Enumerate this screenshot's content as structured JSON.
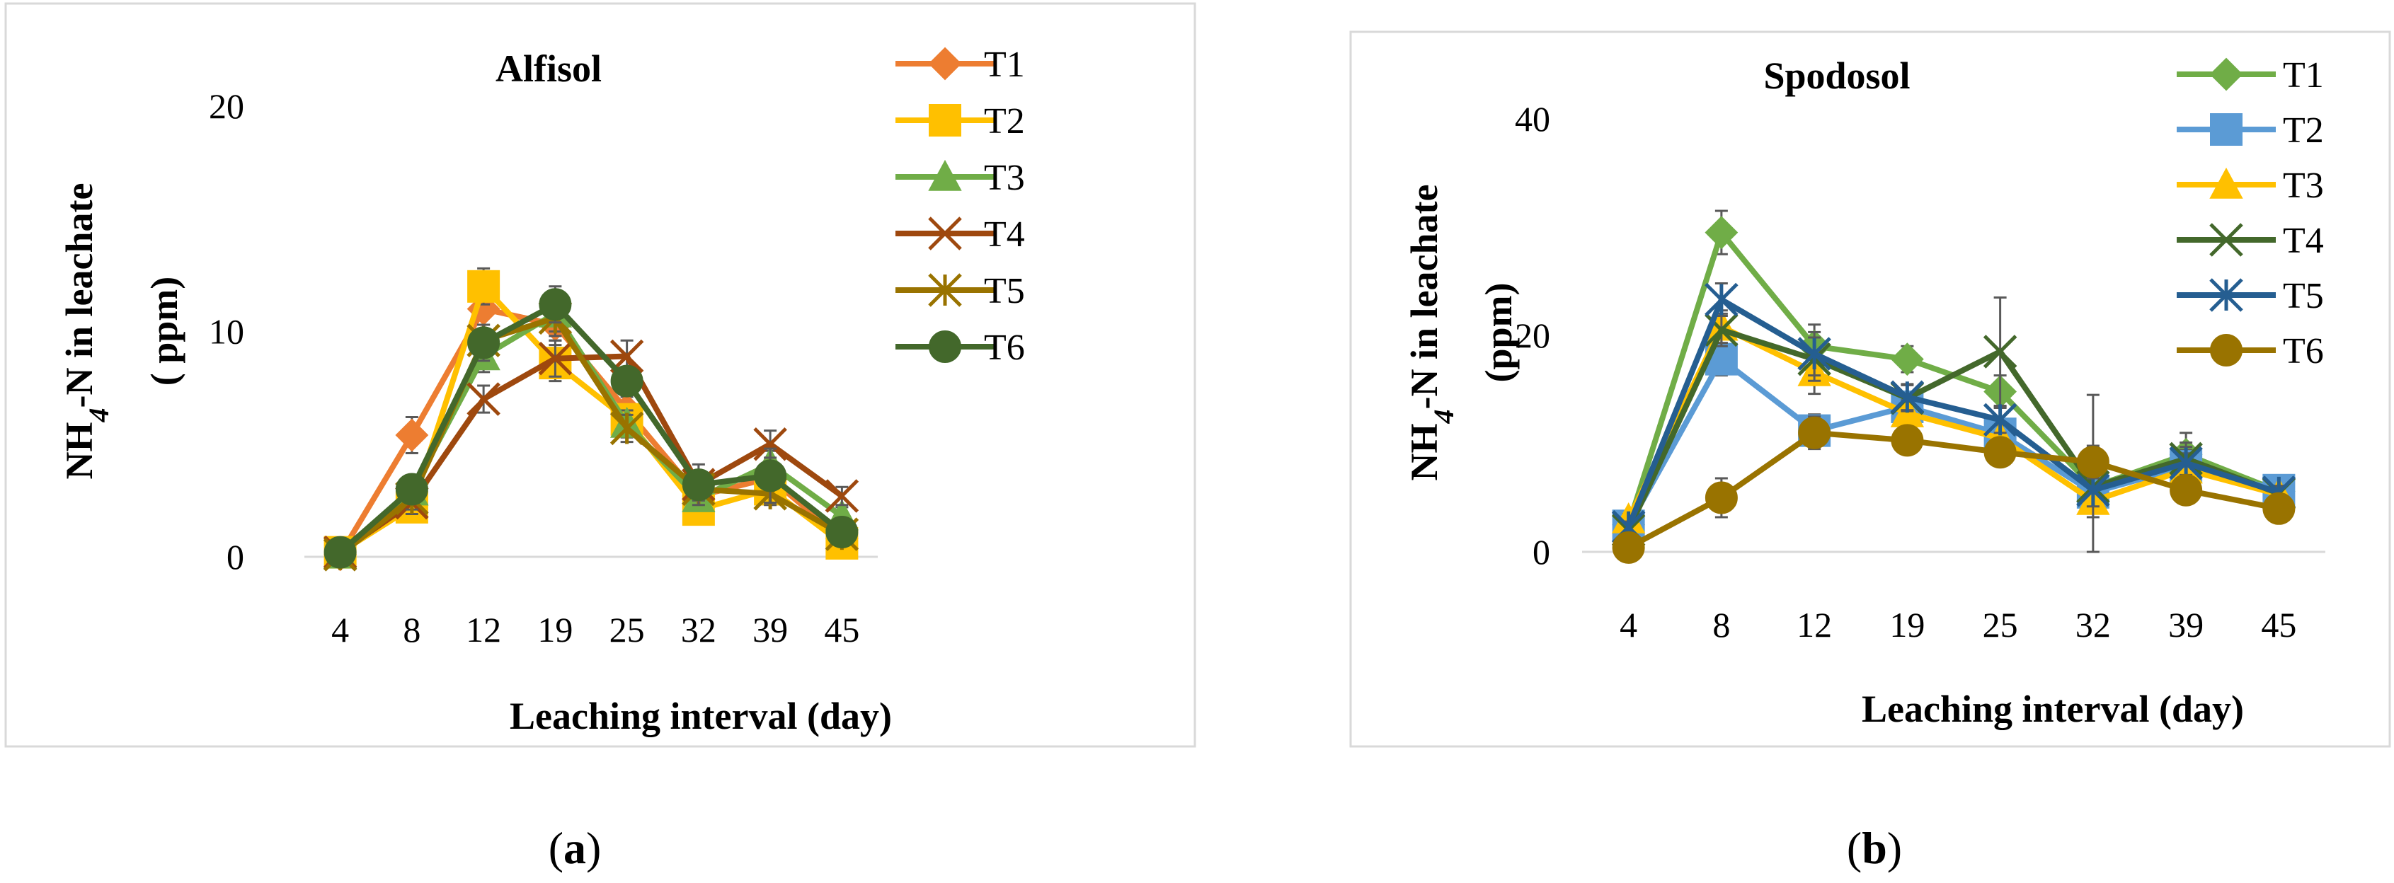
{
  "figure": {
    "captions": [
      {
        "open": "(",
        "letter": "a",
        "close": ")"
      },
      {
        "open": "(",
        "letter": "b",
        "close": ")"
      }
    ]
  },
  "chart_data": [
    {
      "type": "line",
      "title": "Alfisol",
      "xlabel": "Leaching interval (day)",
      "ylabel_parts": {
        "main": "NH",
        "sub": "4",
        "rest": "-N in leachate",
        "unit": "( ppm)"
      },
      "categories": [
        "4",
        "8",
        "12",
        "19",
        "25",
        "32",
        "39",
        "45"
      ],
      "ylim": [
        0,
        20
      ],
      "yticks": [
        0,
        10,
        20
      ],
      "legend_position": "right",
      "series": [
        {
          "name": "T1",
          "color": "#ED7D31",
          "marker": "diamond",
          "values": [
            0.1,
            5.4,
            11.0,
            10.3,
            6.5,
            2.7,
            3.5,
            0.8
          ],
          "err": [
            0.2,
            0.8,
            0.9,
            0.7,
            0.6,
            0.5,
            0.6,
            0.3
          ]
        },
        {
          "name": "T2",
          "color": "#FFC000",
          "marker": "square",
          "values": [
            0.2,
            2.2,
            12.0,
            8.6,
            6.1,
            2.1,
            3.0,
            0.6
          ],
          "err": [
            0.2,
            0.5,
            0.8,
            0.8,
            0.6,
            0.4,
            0.5,
            0.3
          ]
        },
        {
          "name": "T3",
          "color": "#70AD47",
          "marker": "triangle",
          "values": [
            0.1,
            2.9,
            8.9,
            10.8,
            5.9,
            2.6,
            4.1,
            1.8
          ],
          "err": [
            0.2,
            0.5,
            0.7,
            0.8,
            0.6,
            0.5,
            0.6,
            0.4
          ]
        },
        {
          "name": "T4",
          "color": "#9E480E",
          "marker": "x",
          "values": [
            0.2,
            2.4,
            7.0,
            8.8,
            8.9,
            3.2,
            5.0,
            2.7
          ],
          "err": [
            0.2,
            0.5,
            0.6,
            0.8,
            0.7,
            0.6,
            0.6,
            0.4
          ]
        },
        {
          "name": "T5",
          "color": "#997300",
          "marker": "asterisk",
          "values": [
            0.1,
            2.6,
            9.6,
            10.6,
            5.7,
            3.0,
            2.8,
            1.0
          ],
          "err": [
            0.2,
            0.5,
            0.7,
            0.8,
            0.6,
            0.5,
            0.5,
            0.3
          ]
        },
        {
          "name": "T6",
          "color": "#43682B",
          "marker": "circle",
          "values": [
            0.2,
            3.0,
            9.5,
            11.2,
            7.8,
            3.2,
            3.6,
            1.1
          ],
          "err": [
            0.2,
            0.5,
            0.8,
            0.8,
            0.6,
            0.9,
            1.2,
            0.4
          ]
        }
      ]
    },
    {
      "type": "line",
      "title": "Spodosol",
      "xlabel": "Leaching interval (day)",
      "ylabel_parts": {
        "main": "NH",
        "sub": "4",
        "rest": "-N  in leachate",
        "unit": "(ppm)"
      },
      "categories": [
        "4",
        "8",
        "12",
        "19",
        "25",
        "32",
        "39",
        "45"
      ],
      "ylim": [
        0,
        40
      ],
      "yticks": [
        0,
        20,
        40
      ],
      "legend_position": "right",
      "series": [
        {
          "name": "T1",
          "color": "#70AD47",
          "marker": "diamond",
          "values": [
            2.5,
            29.5,
            19.0,
            17.8,
            14.8,
            6.0,
            9.0,
            5.6
          ],
          "err": [
            0.5,
            2.0,
            2.0,
            1.2,
            1.5,
            1.5,
            2.0,
            0.6
          ]
        },
        {
          "name": "T2",
          "color": "#5B9BD5",
          "marker": "square",
          "values": [
            2.4,
            17.8,
            11.2,
            13.4,
            10.9,
            5.5,
            7.9,
            5.7
          ],
          "err": [
            0.5,
            1.5,
            1.5,
            1.2,
            1.2,
            1.5,
            1.5,
            0.6
          ]
        },
        {
          "name": "T3",
          "color": "#FFC000",
          "marker": "triangle",
          "values": [
            3.0,
            20.8,
            16.6,
            12.8,
            10.5,
            4.7,
            7.6,
            5.3
          ],
          "err": [
            0.5,
            1.5,
            2.0,
            1.2,
            1.2,
            1.5,
            1.5,
            0.6
          ]
        },
        {
          "name": "T4",
          "color": "#43682B",
          "marker": "x",
          "values": [
            2.0,
            20.5,
            17.8,
            14.2,
            18.5,
            6.0,
            8.6,
            5.4
          ],
          "err": [
            0.5,
            1.5,
            2.0,
            1.2,
            5.0,
            8.5,
            1.5,
            0.6
          ]
        },
        {
          "name": "T5",
          "color": "#255E91",
          "marker": "asterisk",
          "values": [
            2.3,
            23.3,
            18.3,
            14.3,
            12.2,
            5.7,
            8.2,
            5.5
          ],
          "err": [
            0.5,
            1.5,
            2.0,
            1.2,
            1.2,
            1.5,
            1.5,
            0.6
          ]
        },
        {
          "name": "T6",
          "color": "#997300",
          "marker": "circle",
          "values": [
            0.4,
            5.0,
            11.0,
            10.3,
            9.2,
            8.3,
            5.7,
            4.0
          ],
          "err": [
            0.3,
            1.8,
            1.5,
            1.0,
            1.0,
            1.5,
            1.0,
            0.5
          ]
        }
      ]
    }
  ]
}
